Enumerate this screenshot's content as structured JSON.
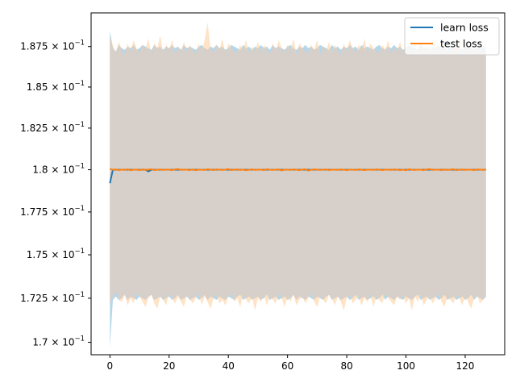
{
  "chart_data": {
    "type": "line",
    "title": "",
    "xlabel": "",
    "ylabel": "",
    "xlim": [
      -6.35,
      133.35
    ],
    "ylim": [
      0.1693,
      0.1896
    ],
    "y_scale": "log",
    "grid": false,
    "legend_placement": "top-right",
    "x_ticks": [
      0,
      20,
      40,
      60,
      80,
      100,
      120
    ],
    "x_tick_labels": [
      "0",
      "20",
      "40",
      "60",
      "80",
      "100",
      "120"
    ],
    "y_ticks": [
      0.17,
      0.1725,
      0.175,
      0.1775,
      0.18,
      0.1825,
      0.185,
      0.1875
    ],
    "y_tick_mantissas": [
      "1.7",
      "1.725",
      "1.75",
      "1.775",
      "1.8",
      "1.825",
      "1.85",
      "1.875"
    ],
    "y_tick_base": "10",
    "y_tick_exponent": "−1",
    "colors": {
      "learn_line": "#1f77b4",
      "learn_band": "#9ecae1",
      "test_line": "#ff7f0e",
      "test_band": "#fdd0a2",
      "overlap": "#d6cfca"
    },
    "series": [
      {
        "name": "learn loss",
        "key": "learn",
        "x_start": 0,
        "x_step": 1,
        "mean": [
          0.1792,
          0.18,
          0.18,
          0.18,
          0.18,
          0.18,
          0.18,
          0.18,
          0.18,
          0.18,
          0.18,
          0.18,
          0.18,
          0.1799,
          0.18,
          0.18,
          0.18,
          0.18,
          0.18,
          0.18,
          0.18,
          0.18,
          0.18,
          0.18,
          0.18,
          0.18,
          0.18,
          0.18,
          0.18,
          0.18,
          0.18,
          0.18,
          0.18,
          0.18,
          0.18,
          0.18,
          0.18,
          0.18,
          0.18,
          0.18,
          0.18,
          0.18,
          0.18,
          0.18,
          0.18,
          0.18,
          0.18,
          0.18,
          0.18,
          0.18,
          0.18,
          0.18,
          0.18,
          0.18,
          0.18,
          0.18,
          0.18,
          0.18,
          0.18,
          0.18,
          0.18,
          0.18,
          0.18,
          0.18,
          0.18,
          0.18,
          0.18,
          0.18,
          0.18,
          0.18,
          0.18,
          0.18,
          0.18,
          0.18,
          0.18,
          0.18,
          0.18,
          0.18,
          0.18,
          0.18,
          0.18,
          0.18,
          0.18,
          0.18,
          0.18,
          0.18,
          0.18,
          0.18,
          0.18,
          0.18,
          0.18,
          0.18,
          0.18,
          0.18,
          0.18,
          0.18,
          0.18,
          0.18,
          0.18,
          0.18,
          0.18,
          0.18,
          0.18,
          0.18,
          0.18,
          0.18,
          0.18,
          0.18,
          0.18,
          0.18,
          0.18,
          0.18,
          0.18,
          0.18,
          0.18,
          0.18,
          0.18,
          0.18,
          0.18,
          0.18,
          0.18,
          0.18,
          0.18,
          0.18,
          0.18,
          0.18,
          0.18,
          0.18
        ],
        "upper": [
          0.1885,
          0.1874,
          0.1872,
          0.1876,
          0.1874,
          0.1873,
          0.1875,
          0.1874,
          0.1876,
          0.1873,
          0.1874,
          0.1876,
          0.1875,
          0.1874,
          0.1873,
          0.1876,
          0.1874,
          0.1875,
          0.1873,
          0.1875,
          0.1874,
          0.1876,
          0.1874,
          0.1875,
          0.1873,
          0.1876,
          0.1874,
          0.1875,
          0.1874,
          0.1873,
          0.1875,
          0.1876,
          0.1874,
          0.1873,
          0.1875,
          0.1874,
          0.1876,
          0.1874,
          0.1875,
          0.1873,
          0.1874,
          0.1876,
          0.1875,
          0.1874,
          0.1873,
          0.1876,
          0.1874,
          0.1875,
          0.1873,
          0.1875,
          0.1874,
          0.1876,
          0.1874,
          0.1875,
          0.1873,
          0.1876,
          0.1874,
          0.1875,
          0.1874,
          0.1873,
          0.1875,
          0.1876,
          0.1874,
          0.1873,
          0.1875,
          0.1874,
          0.1876,
          0.1874,
          0.1875,
          0.1873,
          0.1874,
          0.1876,
          0.1875,
          0.1874,
          0.1873,
          0.1876,
          0.1874,
          0.1875,
          0.1873,
          0.1875,
          0.1874,
          0.1876,
          0.1874,
          0.1875,
          0.1873,
          0.1876,
          0.1874,
          0.1875,
          0.1874,
          0.1873,
          0.1875,
          0.1876,
          0.1874,
          0.1873,
          0.1875,
          0.1874,
          0.1876,
          0.1874,
          0.1875,
          0.1873,
          0.1874,
          0.1876,
          0.1875,
          0.1874,
          0.1873,
          0.1876,
          0.1874,
          0.1875,
          0.1873,
          0.1875,
          0.1874,
          0.1876,
          0.1874,
          0.1875,
          0.1873,
          0.1876,
          0.1874,
          0.1875,
          0.1874,
          0.1873,
          0.1875,
          0.1876,
          0.1874,
          0.1873,
          0.1875,
          0.1874,
          0.1876,
          0.1874
        ],
        "lower": [
          0.1697,
          0.1724,
          0.1726,
          0.1724,
          0.1725,
          0.1727,
          0.1724,
          0.1726,
          0.1725,
          0.1724,
          0.1726,
          0.1725,
          0.1724,
          0.1726,
          0.1727,
          0.1724,
          0.1725,
          0.1726,
          0.1724,
          0.1725,
          0.1726,
          0.1724,
          0.1725,
          0.1727,
          0.1724,
          0.1725,
          0.1726,
          0.1724,
          0.1725,
          0.1726,
          0.1724,
          0.1725,
          0.1727,
          0.1724,
          0.1726,
          0.1725,
          0.1724,
          0.1726,
          0.1725,
          0.1724,
          0.1726,
          0.1725,
          0.1724,
          0.1726,
          0.1727,
          0.1724,
          0.1725,
          0.1726,
          0.1724,
          0.1725,
          0.1726,
          0.1724,
          0.1725,
          0.1727,
          0.1724,
          0.1725,
          0.1726,
          0.1724,
          0.1725,
          0.1726,
          0.1724,
          0.1725,
          0.1727,
          0.1724,
          0.1726,
          0.1725,
          0.1724,
          0.1726,
          0.1725,
          0.1724,
          0.1726,
          0.1725,
          0.1724,
          0.1726,
          0.1727,
          0.1724,
          0.1725,
          0.1726,
          0.1724,
          0.1725,
          0.1726,
          0.1724,
          0.1725,
          0.1727,
          0.1724,
          0.1725,
          0.1726,
          0.1724,
          0.1725,
          0.1726,
          0.1724,
          0.1725,
          0.1727,
          0.1724,
          0.1726,
          0.1725,
          0.1724,
          0.1726,
          0.1725,
          0.1724,
          0.1726,
          0.1725,
          0.1724,
          0.1726,
          0.1727,
          0.1724,
          0.1725,
          0.1726,
          0.1724,
          0.1725,
          0.1726,
          0.1724,
          0.1725,
          0.1727,
          0.1724,
          0.1725,
          0.1726,
          0.1724,
          0.1725,
          0.1726,
          0.1724,
          0.1725,
          0.1727,
          0.1724,
          0.1726,
          0.1725,
          0.1724,
          0.1726
        ]
      },
      {
        "name": "test loss",
        "key": "test",
        "x_start": 0,
        "x_step": 1,
        "mean": [
          0.18005,
          0.18,
          0.18002,
          0.17998,
          0.18001,
          0.17999,
          0.18003,
          0.17997,
          0.18001,
          0.18,
          0.17998,
          0.18002,
          0.17999,
          0.18001,
          0.18003,
          0.17998,
          0.18,
          0.18002,
          0.17999,
          0.18001,
          0.18,
          0.17998,
          0.18002,
          0.18004,
          0.17999,
          0.18001,
          0.18,
          0.17998,
          0.18002,
          0.17997,
          0.18001,
          0.18,
          0.17999,
          0.18003,
          0.18001,
          0.17998,
          0.18002,
          0.18,
          0.17999,
          0.18001,
          0.18004,
          0.17998,
          0.18,
          0.18002,
          0.17999,
          0.18001,
          0.17997,
          0.18,
          0.18002,
          0.17999,
          0.18001,
          0.18,
          0.17998,
          0.18003,
          0.18,
          0.17999,
          0.18001,
          0.18002,
          0.17996,
          0.18001,
          0.18,
          0.17999,
          0.18002,
          0.18,
          0.17998,
          0.18001,
          0.18003,
          0.17995,
          0.18,
          0.18002,
          0.18001,
          0.17999,
          0.18,
          0.18002,
          0.17998,
          0.18001,
          0.18,
          0.17999,
          0.18002,
          0.18,
          0.17998,
          0.18001,
          0.18,
          0.17999,
          0.18002,
          0.18,
          0.17998,
          0.18001,
          0.18,
          0.17999,
          0.18002,
          0.18,
          0.17998,
          0.18001,
          0.18,
          0.17999,
          0.18002,
          0.18,
          0.17998,
          0.18001,
          0.17997,
          0.18003,
          0.18,
          0.17999,
          0.18001,
          0.18,
          0.17998,
          0.18002,
          0.18004,
          0.17999,
          0.18001,
          0.18,
          0.17998,
          0.18002,
          0.17999,
          0.18001,
          0.18003,
          0.17998,
          0.18,
          0.18002,
          0.17999,
          0.18001,
          0.18,
          0.17998,
          0.18002,
          0.18001,
          0.17999,
          0.18002
        ],
        "upper": [
          0.1881,
          0.1876,
          0.1871,
          0.1878,
          0.1873,
          0.187,
          0.1877,
          0.1872,
          0.1879,
          0.1874,
          0.1871,
          0.1876,
          0.1873,
          0.188,
          0.187,
          0.1877,
          0.1874,
          0.1882,
          0.1871,
          0.1876,
          0.1873,
          0.1879,
          0.187,
          0.1875,
          0.1872,
          0.1878,
          0.1871,
          0.1876,
          0.1873,
          0.187,
          0.1877,
          0.1872,
          0.1879,
          0.189,
          0.1874,
          0.1871,
          0.1876,
          0.1873,
          0.188,
          0.187,
          0.1877,
          0.1874,
          0.1872,
          0.1871,
          0.1876,
          0.1873,
          0.1879,
          0.187,
          0.1875,
          0.1872,
          0.1878,
          0.1871,
          0.1876,
          0.1873,
          0.187,
          0.1877,
          0.1872,
          0.1879,
          0.1874,
          0.1871,
          0.1876,
          0.1873,
          0.188,
          0.187,
          0.1877,
          0.1874,
          0.1872,
          0.1871,
          0.1876,
          0.1873,
          0.1879,
          0.187,
          0.1875,
          0.1872,
          0.1878,
          0.1871,
          0.1876,
          0.1873,
          0.187,
          0.1877,
          0.1872,
          0.1879,
          0.1874,
          0.1871,
          0.1876,
          0.1873,
          0.188,
          0.187,
          0.1877,
          0.1874,
          0.1872,
          0.1871,
          0.1876,
          0.1873,
          0.1879,
          0.187,
          0.1875,
          0.1872,
          0.1878,
          0.1871,
          0.1876,
          0.1873,
          0.187,
          0.1877,
          0.1872,
          0.1879,
          0.1874,
          0.1871,
          0.1876,
          0.1873,
          0.188,
          0.187,
          0.1877,
          0.1874,
          0.1872,
          0.1871,
          0.1876,
          0.1873,
          0.1879,
          0.187,
          0.1875,
          0.1872,
          0.1878,
          0.1871,
          0.1876,
          0.1873,
          0.187,
          0.1877
        ],
        "lower": [
          0.1722,
          0.1726,
          0.1729,
          0.1724,
          0.1723,
          0.1727,
          0.1721,
          0.1725,
          0.1722,
          0.1728,
          0.1726,
          0.1723,
          0.172,
          0.1725,
          0.1727,
          0.1722,
          0.1719,
          0.1726,
          0.1724,
          0.1721,
          0.1728,
          0.1725,
          0.1722,
          0.1726,
          0.1723,
          0.172,
          0.1727,
          0.1724,
          0.1722,
          0.1725,
          0.1728,
          0.1721,
          0.1726,
          0.1723,
          0.1719,
          0.1725,
          0.1727,
          0.1722,
          0.1724,
          0.1721,
          0.1726,
          0.1728,
          0.1723,
          0.1725,
          0.172,
          0.1727,
          0.1724,
          0.1722,
          0.1726,
          0.1718,
          0.1725,
          0.1723,
          0.1727,
          0.1721,
          0.1726,
          0.1724,
          0.1722,
          0.1728,
          0.1725,
          0.172,
          0.1726,
          0.1723,
          0.1727,
          0.1721,
          0.1724,
          0.1726,
          0.1722,
          0.1725,
          0.1728,
          0.1723,
          0.172,
          0.1726,
          0.1724,
          0.1722,
          0.1727,
          0.1725,
          0.1721,
          0.1726,
          0.1723,
          0.1718,
          0.1725,
          0.1727,
          0.1722,
          0.1724,
          0.1726,
          0.1721,
          0.1725,
          0.1723,
          0.1727,
          0.172,
          0.1726,
          0.1724,
          0.1722,
          0.1728,
          0.1725,
          0.1723,
          0.1721,
          0.1726,
          0.1724,
          0.1727,
          0.1722,
          0.1725,
          0.1718,
          0.1726,
          0.1723,
          0.1727,
          0.1721,
          0.1724,
          0.1726,
          0.1722,
          0.1725,
          0.1728,
          0.1723,
          0.172,
          0.1726,
          0.1724,
          0.1722,
          0.1727,
          0.1725,
          0.1721,
          0.1726,
          0.1723,
          0.1719,
          0.1725,
          0.1727,
          0.1722,
          0.1724,
          0.1726
        ]
      }
    ]
  }
}
